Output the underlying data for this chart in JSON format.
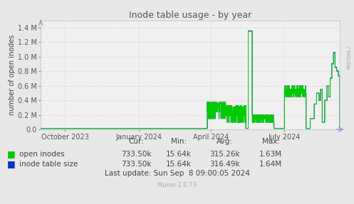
{
  "title": "Inode table usage - by year",
  "ylabel": "number of open inodes",
  "background_color": "#e8e8e8",
  "plot_background_color": "#f0f0f0",
  "grid_color": "#ff9999",
  "ylim": [
    0,
    1500000.0
  ],
  "yticks": [
    0.0,
    200000.0,
    400000.0,
    600000.0,
    800000.0,
    1000000.0,
    1200000.0,
    1400000.0
  ],
  "ytick_labels": [
    "0.0",
    "0.2 M",
    "0.4 M",
    "0.6 M",
    "0.8 M",
    "1.0 M",
    "1.2 M",
    "1.4 M"
  ],
  "open_inodes_color": "#00cc00",
  "inode_table_color": "#0033cc",
  "legend_labels": [
    "open inodes",
    "inode table size"
  ],
  "cur_open": "733.50k",
  "cur_table": "733.50k",
  "min_open": "15.64k",
  "min_table": "15.64k",
  "avg_open": "315.26k",
  "avg_table": "316.49k",
  "max_open": "1.63M",
  "max_table": "1.64M",
  "last_update": "Last update: Sun Sep  8 09:00:05 2024",
  "munin_version": "Munin 2.0.73",
  "rrdtool_label": "RRDTOOL/",
  "title_color": "#555555",
  "label_color": "#444444",
  "tick_color": "#555555"
}
